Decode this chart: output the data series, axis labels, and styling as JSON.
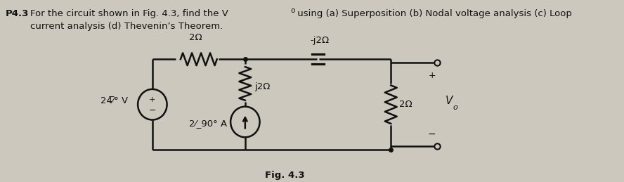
{
  "background_color": "#ccc8be",
  "circuit_color": "#111111",
  "fig_label": "Fig. 4.3",
  "header_bold": "P4.3",
  "header_line1": "For the circuit shown in Fig. 4.3, find the V",
  "header_line1_sub": "o",
  "header_line1_rest": " using (a) Superposition (b) Nodal voltage analysis (c) Loop",
  "header_line2": "current analysis (d) Thevenin’s Theorem.",
  "lbl_2ohm_top": "2Ω",
  "lbl_neg_j2": "-j2Ω",
  "lbl_j2": "j2Ω",
  "lbl_2ohm_right": "2Ω",
  "lbl_vs": "24⁄̅° V",
  "lbl_cs": "2⁄_90° A",
  "lbl_vo": "V",
  "lbl_vo_sub": "o",
  "lbl_plus": "+",
  "lbl_minus": "−"
}
